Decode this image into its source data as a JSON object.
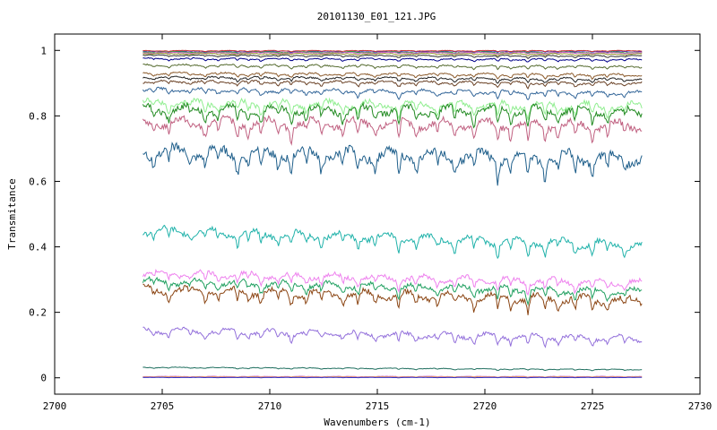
{
  "chart_data": {
    "type": "line",
    "title": "20101130_E01_121.JPG",
    "xlabel": "Wavenumbers (cm-1)",
    "ylabel": "Transmitance",
    "xlim": [
      2700,
      2730
    ],
    "ylim": [
      -0.05,
      1.05
    ],
    "x_ticks": [
      "2700",
      "2705",
      "2710",
      "2715",
      "2720",
      "2725",
      "2730"
    ],
    "y_ticks": [
      "0",
      "0.2",
      "0.4",
      "0.6",
      "0.8",
      "1"
    ],
    "x_range": [
      2704.1,
      2727.3
    ],
    "grid": false,
    "legend": "none",
    "absorption_lines": [
      2704.6,
      2705.3,
      2706.3,
      2707.0,
      2707.6,
      2708.5,
      2709.0,
      2709.6,
      2710.4,
      2711.0,
      2711.7,
      2712.4,
      2713.4,
      2714.1,
      2714.9,
      2716.0,
      2716.8,
      2717.8,
      2718.6,
      2719.5,
      2720.6,
      2721.2,
      2722.0,
      2722.8,
      2723.4,
      2724.2,
      2725.0,
      2725.7,
      2726.5
    ],
    "line_depths": [
      0.4,
      0.5,
      0.35,
      0.6,
      0.45,
      0.7,
      0.5,
      0.65,
      0.55,
      0.75,
      0.5,
      0.6,
      0.55,
      0.7,
      0.5,
      0.8,
      0.6,
      0.55,
      0.65,
      0.7,
      0.95,
      0.6,
      1.0,
      0.8,
      0.55,
      0.7,
      0.75,
      0.6,
      0.5
    ],
    "series": [
      {
        "start": 0.997,
        "end": 0.997,
        "depth": 0.004,
        "color": "#3333cc"
      },
      {
        "start": 0.999,
        "end": 0.999,
        "depth": 0.003,
        "color": "#cc3333"
      },
      {
        "start": 0.995,
        "end": 0.994,
        "depth": 0.004,
        "color": "#33aa33"
      },
      {
        "start": 0.993,
        "end": 0.993,
        "depth": 0.004,
        "color": "#cc66cc"
      },
      {
        "start": 0.99,
        "end": 0.989,
        "depth": 0.005,
        "color": "#999933"
      },
      {
        "start": 0.985,
        "end": 0.983,
        "depth": 0.006,
        "color": "#333333"
      },
      {
        "start": 0.975,
        "end": 0.972,
        "depth": 0.008,
        "color": "#000088"
      },
      {
        "start": 0.955,
        "end": 0.95,
        "depth": 0.01,
        "color": "#556b2f"
      },
      {
        "start": 0.93,
        "end": 0.925,
        "depth": 0.012,
        "color": "#8b5a2b"
      },
      {
        "start": 0.918,
        "end": 0.912,
        "depth": 0.012,
        "color": "#222222"
      },
      {
        "start": 0.905,
        "end": 0.9,
        "depth": 0.014,
        "color": "#6b4226"
      },
      {
        "start": 0.88,
        "end": 0.87,
        "depth": 0.02,
        "color": "#336699"
      },
      {
        "start": 0.84,
        "end": 0.83,
        "depth": 0.04,
        "color": "#90ee90"
      },
      {
        "start": 0.82,
        "end": 0.815,
        "depth": 0.05,
        "color": "#228b22"
      },
      {
        "start": 0.78,
        "end": 0.77,
        "depth": 0.055,
        "color": "#c06080"
      },
      {
        "start": 0.69,
        "end": 0.67,
        "depth": 0.07,
        "color": "#1f5f8b"
      },
      {
        "start": 0.45,
        "end": 0.405,
        "depth": 0.045,
        "color": "#20b2aa"
      },
      {
        "start": 0.32,
        "end": 0.29,
        "depth": 0.035,
        "color": "#ee82ee"
      },
      {
        "start": 0.295,
        "end": 0.262,
        "depth": 0.035,
        "color": "#20a060"
      },
      {
        "start": 0.27,
        "end": 0.235,
        "depth": 0.045,
        "color": "#8b4513"
      },
      {
        "start": 0.145,
        "end": 0.12,
        "depth": 0.03,
        "color": "#9370db"
      },
      {
        "start": 0.032,
        "end": 0.025,
        "depth": 0.004,
        "color": "#1f6f5f"
      },
      {
        "start": 0.004,
        "end": 0.004,
        "depth": 0.002,
        "color": "#cc66cc"
      },
      {
        "start": 0.002,
        "end": 0.002,
        "depth": 0.001,
        "color": "#ffcc00"
      },
      {
        "start": 0.001,
        "end": 0.001,
        "depth": 0.001,
        "color": "#3333cc"
      }
    ]
  }
}
